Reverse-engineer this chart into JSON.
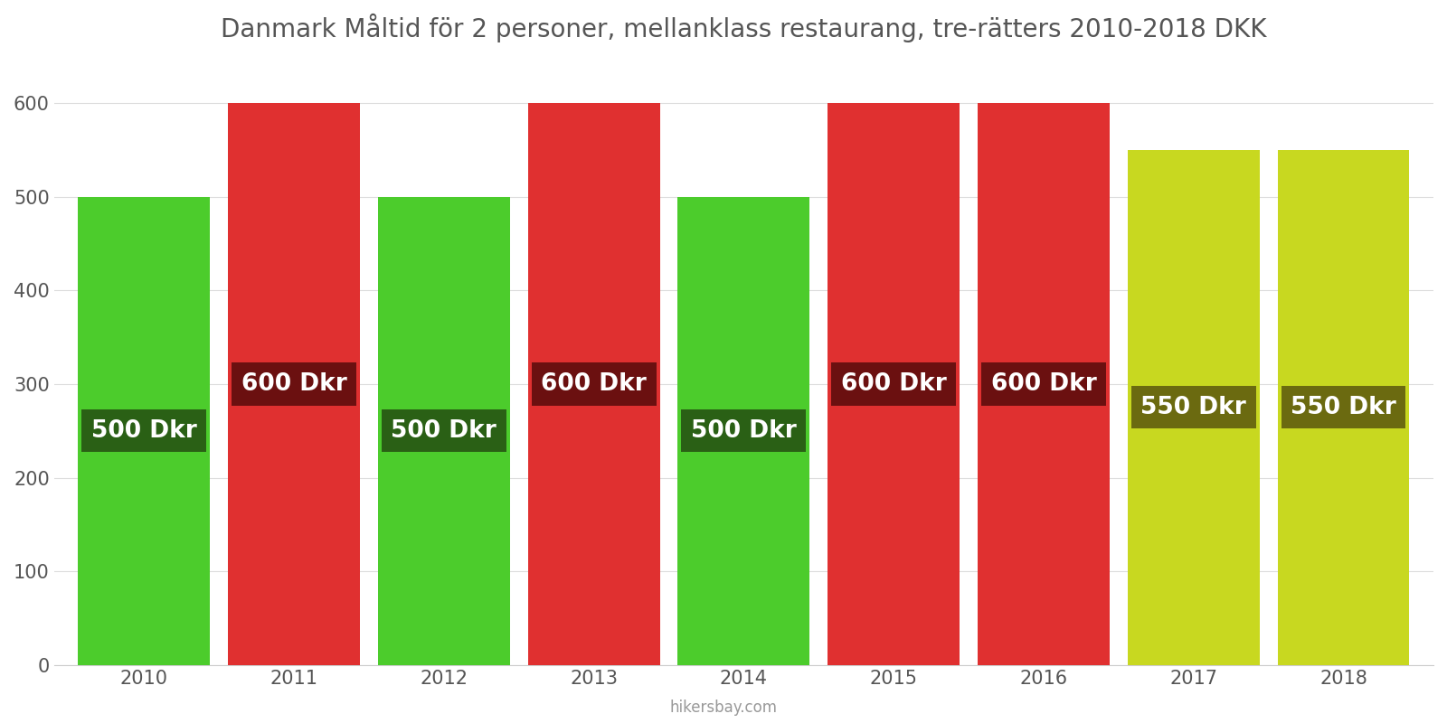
{
  "years": [
    2010,
    2011,
    2012,
    2013,
    2014,
    2015,
    2016,
    2017,
    2018
  ],
  "values": [
    500,
    600,
    500,
    600,
    500,
    600,
    600,
    550,
    550
  ],
  "bar_colors": [
    "#4ccc2c",
    "#e03030",
    "#4ccc2c",
    "#e03030",
    "#4ccc2c",
    "#e03030",
    "#e03030",
    "#c8d820",
    "#c8d820"
  ],
  "label_bg_colors": [
    "#2a6015",
    "#6b1010",
    "#2a6015",
    "#6b1010",
    "#2a6015",
    "#6b1010",
    "#6b1010",
    "#6b6a10",
    "#6b6a10"
  ],
  "labels": [
    "500 Dkr",
    "600 Dkr",
    "500 Dkr",
    "600 Dkr",
    "500 Dkr",
    "600 Dkr",
    "600 Dkr",
    "550 Dkr",
    "550 Dkr"
  ],
  "title": "Danmark Måltid för 2 personer, mellanklass restaurang, tre-rätters 2010-2018 DKK",
  "ylim": [
    0,
    650
  ],
  "yticks": [
    0,
    100,
    200,
    300,
    400,
    500,
    600
  ],
  "background_color": "#ffffff",
  "footer": "hikersbay.com",
  "title_fontsize": 20,
  "label_fontsize": 19,
  "tick_fontsize": 15,
  "bar_width": 0.88
}
